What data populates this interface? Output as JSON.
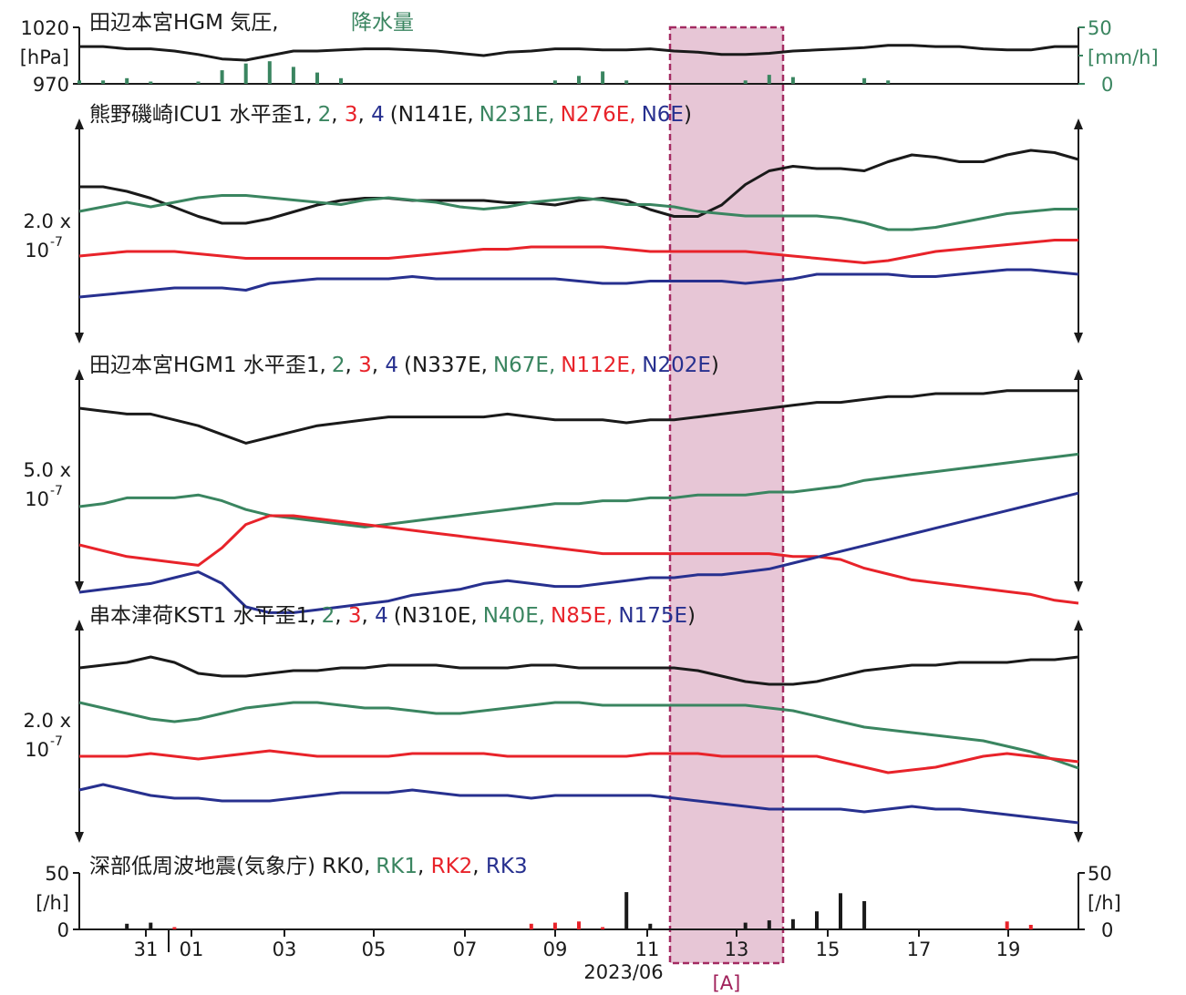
{
  "colors": {
    "black": "#1a1a1a",
    "green": "#3a8560",
    "red": "#e8232a",
    "blue": "#27308f",
    "highlight": "#e6c4d4",
    "highlight_border": "#a0205a"
  },
  "panel_pressure": {
    "title": "田辺本宮HGM 気圧,",
    "title_rain": "降水量",
    "y_top": "1020",
    "y_unit": "[hPa]",
    "y_bottom": "970",
    "r_top": "50",
    "r_unit": "[mm/h]",
    "r_bottom": "0"
  },
  "panel_icu": {
    "prefix": "熊野磯崎ICU1 水平歪1,",
    "s2": "2",
    "s3": "3",
    "s4": "4",
    "dir_open": "(N141E,",
    "d2": "N231E,",
    "d3": "N276E,",
    "d4": "N6E",
    "dir_close": ")",
    "scale1": "2.0 x",
    "scale2": "10",
    "scale_exp": "-7"
  },
  "panel_hgm": {
    "prefix": "田辺本宮HGM1 水平歪1,",
    "s2": "2",
    "s3": "3",
    "s4": "4",
    "dir_open": "(N337E,",
    "d2": "N67E,",
    "d3": "N112E,",
    "d4": "N202E",
    "dir_close": ")",
    "scale1": "5.0 x",
    "scale2": "10",
    "scale_exp": "-7"
  },
  "panel_kst": {
    "prefix": "串本津荷KST1 水平歪1,",
    "s2": "2",
    "s3": "3",
    "s4": "4",
    "dir_open": "(N310E,",
    "d2": "N40E,",
    "d3": "N85E,",
    "d4": "N175E",
    "dir_close": ")",
    "scale1": "2.0 x",
    "scale2": "10",
    "scale_exp": "-7"
  },
  "panel_lfe": {
    "title": "深部低周波地震(気象庁) RK0,",
    "rk1": "RK1",
    "rk2": "RK2",
    "rk3": "RK3",
    "y_top": "50",
    "y_unit": "[/h]",
    "y_bottom": "0"
  },
  "x_axis": {
    "ticks": [
      "31",
      "01",
      "03",
      "05",
      "07",
      "09",
      "11",
      "13",
      "15",
      "17",
      "19"
    ],
    "label": "2023/06",
    "highlight_label": "[A]"
  },
  "chart_data": [
    {
      "type": "line+bar",
      "title": "田辺本宮HGM 気圧, 降水量",
      "series": [
        {
          "name": "気圧",
          "unit": "hPa",
          "values": [
            1003,
            1003,
            1001,
            1001,
            999,
            996,
            992,
            991,
            995,
            999,
            999,
            1000,
            1001,
            1001,
            1000,
            999,
            997,
            995,
            998,
            999,
            1001,
            1001,
            1000,
            1000,
            1001,
            999,
            998,
            996,
            996,
            997,
            999,
            1000,
            1001,
            1002,
            1004,
            1004,
            1003,
            1003,
            1001,
            1000,
            1000,
            1003,
            1003
          ]
        },
        {
          "name": "降水量",
          "unit": "mm/h",
          "values": [
            3,
            3,
            5,
            2,
            0,
            2,
            12,
            18,
            20,
            15,
            10,
            5,
            0,
            0,
            0,
            0,
            0,
            0,
            0,
            0,
            3,
            7,
            11,
            3,
            0,
            0,
            0,
            0,
            3,
            8,
            6,
            0,
            0,
            5,
            3,
            0,
            0,
            0,
            0,
            0,
            0,
            0,
            0
          ]
        }
      ],
      "ylim": [
        970,
        1020
      ],
      "y2lim": [
        0,
        50
      ]
    },
    {
      "type": "line",
      "title": "熊野磯崎ICU1 水平歪1, 2, 3, 4 (N141E, N231E, N276E, N6E)",
      "scale": "2.0 x 10-7",
      "series": [
        {
          "name": "1",
          "values": [
            -1.0,
            -1.0,
            -1.2,
            -1.5,
            -1.9,
            -2.3,
            -2.6,
            -2.6,
            -2.4,
            -2.1,
            -1.8,
            -1.6,
            -1.5,
            -1.5,
            -1.6,
            -1.6,
            -1.6,
            -1.6,
            -1.7,
            -1.7,
            -1.8,
            -1.6,
            -1.5,
            -1.6,
            -2.0,
            -2.3,
            -2.3,
            -1.8,
            -0.9,
            -0.3,
            -0.1,
            -0.2,
            -0.2,
            -0.3,
            0.1,
            0.4,
            0.3,
            0.1,
            0.1,
            0.4,
            0.6,
            0.5,
            0.2
          ]
        },
        {
          "name": "2",
          "values": [
            0.0,
            0.2,
            0.4,
            0.2,
            0.4,
            0.6,
            0.7,
            0.7,
            0.6,
            0.5,
            0.4,
            0.3,
            0.5,
            0.6,
            0.5,
            0.4,
            0.2,
            0.1,
            0.2,
            0.4,
            0.5,
            0.6,
            0.5,
            0.3,
            0.3,
            0.2,
            0.0,
            -0.1,
            -0.2,
            -0.2,
            -0.2,
            -0.2,
            -0.3,
            -0.5,
            -0.8,
            -0.8,
            -0.7,
            -0.5,
            -0.3,
            -0.1,
            0.0,
            0.1,
            0.1
          ]
        },
        {
          "name": "3",
          "values": [
            -0.2,
            -0.1,
            0.0,
            0.0,
            0.0,
            -0.1,
            -0.2,
            -0.3,
            -0.3,
            -0.3,
            -0.3,
            -0.3,
            -0.3,
            -0.3,
            -0.2,
            -0.1,
            0.0,
            0.1,
            0.1,
            0.2,
            0.2,
            0.2,
            0.2,
            0.1,
            0.0,
            0.0,
            0.0,
            0.0,
            0.0,
            -0.1,
            -0.2,
            -0.3,
            -0.4,
            -0.5,
            -0.4,
            -0.2,
            0.0,
            0.1,
            0.2,
            0.3,
            0.4,
            0.5,
            0.5
          ]
        },
        {
          "name": "4",
          "values": [
            0.0,
            0.1,
            0.2,
            0.3,
            0.4,
            0.4,
            0.4,
            0.3,
            0.6,
            0.7,
            0.8,
            0.8,
            0.8,
            0.8,
            0.9,
            0.8,
            0.8,
            0.8,
            0.8,
            0.8,
            0.8,
            0.7,
            0.6,
            0.6,
            0.7,
            0.7,
            0.7,
            0.7,
            0.6,
            0.7,
            0.8,
            1.0,
            1.0,
            1.0,
            1.0,
            0.9,
            0.9,
            1.0,
            1.1,
            1.2,
            1.2,
            1.1,
            1.0
          ]
        }
      ]
    },
    {
      "type": "line",
      "title": "田辺本宮HGM1 水平歪1, 2, 3, 4 (N337E, N67E, N112E, N202E)",
      "scale": "5.0 x 10-7",
      "series": [
        {
          "name": "1",
          "values": [
            0.0,
            -0.1,
            -0.2,
            -0.2,
            -0.4,
            -0.6,
            -0.9,
            -1.2,
            -1.0,
            -0.8,
            -0.6,
            -0.5,
            -0.4,
            -0.3,
            -0.3,
            -0.3,
            -0.3,
            -0.3,
            -0.2,
            -0.3,
            -0.4,
            -0.4,
            -0.4,
            -0.5,
            -0.4,
            -0.4,
            -0.3,
            -0.2,
            -0.1,
            0.0,
            0.1,
            0.2,
            0.2,
            0.3,
            0.4,
            0.4,
            0.5,
            0.5,
            0.5,
            0.6,
            0.6,
            0.6,
            0.6
          ]
        },
        {
          "name": "2",
          "values": [
            -1.5,
            -1.4,
            -1.2,
            -1.2,
            -1.2,
            -1.1,
            -1.3,
            -1.6,
            -1.8,
            -1.9,
            -2.0,
            -2.1,
            -2.2,
            -2.1,
            -2.0,
            -1.9,
            -1.8,
            -1.7,
            -1.6,
            -1.5,
            -1.4,
            -1.4,
            -1.3,
            -1.3,
            -1.2,
            -1.2,
            -1.1,
            -1.1,
            -1.1,
            -1.0,
            -1.0,
            -0.9,
            -0.8,
            -0.6,
            -0.5,
            -0.4,
            -0.3,
            -0.2,
            -0.1,
            0.0,
            0.1,
            0.2,
            0.3
          ]
        },
        {
          "name": "3",
          "values": [
            -1.5,
            -1.7,
            -1.9,
            -2.0,
            -2.1,
            -2.2,
            -1.6,
            -0.8,
            -0.5,
            -0.5,
            -0.6,
            -0.7,
            -0.8,
            -0.9,
            -1.0,
            -1.1,
            -1.2,
            -1.3,
            -1.4,
            -1.5,
            -1.6,
            -1.7,
            -1.8,
            -1.8,
            -1.8,
            -1.8,
            -1.8,
            -1.8,
            -1.8,
            -1.8,
            -1.9,
            -1.9,
            -2.0,
            -2.3,
            -2.5,
            -2.7,
            -2.8,
            -2.9,
            -3.0,
            -3.1,
            -3.2,
            -3.4,
            -3.5
          ]
        },
        {
          "name": "4",
          "values": [
            -1.5,
            -1.4,
            -1.3,
            -1.2,
            -1.0,
            -0.8,
            -1.2,
            -2.0,
            -2.2,
            -2.2,
            -2.1,
            -2.0,
            -1.9,
            -1.8,
            -1.6,
            -1.5,
            -1.4,
            -1.2,
            -1.1,
            -1.2,
            -1.3,
            -1.3,
            -1.2,
            -1.1,
            -1.0,
            -1.0,
            -0.9,
            -0.9,
            -0.8,
            -0.7,
            -0.5,
            -0.3,
            -0.1,
            0.1,
            0.3,
            0.5,
            0.7,
            0.9,
            1.1,
            1.3,
            1.5,
            1.7,
            1.9
          ]
        }
      ]
    },
    {
      "type": "line",
      "title": "串本津荷KST1 水平歪1, 2, 3, 4 (N310E, N40E, N85E, N175E)",
      "scale": "2.0 x 10-7",
      "series": [
        {
          "name": "1",
          "values": [
            0.0,
            0.1,
            0.2,
            0.4,
            0.2,
            -0.2,
            -0.3,
            -0.3,
            -0.2,
            -0.1,
            -0.1,
            0.0,
            0.0,
            0.1,
            0.1,
            0.1,
            0.0,
            0.0,
            0.0,
            0.1,
            0.1,
            0.0,
            0.0,
            0.0,
            0.0,
            0.0,
            -0.1,
            -0.3,
            -0.5,
            -0.6,
            -0.6,
            -0.5,
            -0.3,
            -0.1,
            0.0,
            0.1,
            0.1,
            0.2,
            0.2,
            0.2,
            0.3,
            0.3,
            0.4
          ]
        },
        {
          "name": "2",
          "values": [
            0.0,
            -0.2,
            -0.4,
            -0.6,
            -0.7,
            -0.6,
            -0.4,
            -0.2,
            -0.1,
            0.0,
            0.0,
            -0.1,
            -0.2,
            -0.2,
            -0.3,
            -0.4,
            -0.4,
            -0.3,
            -0.2,
            -0.1,
            0.0,
            0.0,
            -0.1,
            -0.1,
            -0.1,
            -0.1,
            -0.1,
            -0.1,
            -0.1,
            -0.2,
            -0.3,
            -0.5,
            -0.7,
            -0.9,
            -1.0,
            -1.1,
            -1.2,
            -1.3,
            -1.4,
            -1.6,
            -1.8,
            -2.1,
            -2.4
          ]
        },
        {
          "name": "3",
          "values": [
            0.0,
            0.0,
            0.0,
            0.1,
            0.0,
            -0.1,
            0.0,
            0.1,
            0.2,
            0.1,
            0.0,
            0.0,
            0.0,
            0.0,
            0.1,
            0.1,
            0.1,
            0.1,
            0.0,
            0.0,
            0.0,
            0.0,
            0.0,
            0.0,
            0.1,
            0.1,
            0.1,
            0.0,
            0.0,
            0.0,
            0.0,
            0.0,
            -0.2,
            -0.4,
            -0.6,
            -0.5,
            -0.4,
            -0.2,
            0.0,
            0.1,
            0.0,
            -0.1,
            -0.2
          ]
        },
        {
          "name": "4",
          "values": [
            0.0,
            0.2,
            0.0,
            -0.2,
            -0.3,
            -0.3,
            -0.4,
            -0.4,
            -0.4,
            -0.3,
            -0.2,
            -0.1,
            -0.1,
            -0.1,
            0.0,
            -0.1,
            -0.2,
            -0.2,
            -0.2,
            -0.3,
            -0.2,
            -0.2,
            -0.2,
            -0.2,
            -0.2,
            -0.3,
            -0.4,
            -0.5,
            -0.6,
            -0.7,
            -0.7,
            -0.7,
            -0.7,
            -0.8,
            -0.7,
            -0.6,
            -0.7,
            -0.7,
            -0.8,
            -0.9,
            -1.0,
            -1.1,
            -1.2
          ]
        }
      ]
    },
    {
      "type": "bar",
      "title": "深部低周波地震(気象庁) RK0, RK1, RK2, RK3",
      "unit": "/h",
      "series": [
        {
          "name": "RK0",
          "values": [
            0,
            0,
            5,
            6,
            0,
            0,
            0,
            0,
            0,
            0,
            0,
            0,
            0,
            0,
            0,
            0,
            0,
            0,
            0,
            0,
            0,
            0,
            0,
            33,
            5,
            0,
            0,
            0,
            6,
            8,
            9,
            16,
            32,
            25,
            0,
            0,
            0,
            0,
            0,
            0,
            0,
            0,
            0
          ]
        },
        {
          "name": "RK2",
          "values": [
            0,
            0,
            0,
            0,
            2,
            0,
            0,
            0,
            0,
            0,
            0,
            0,
            0,
            0,
            0,
            0,
            0,
            0,
            0,
            5,
            6,
            7,
            2,
            0,
            0,
            0,
            0,
            0,
            0,
            0,
            0,
            0,
            0,
            0,
            0,
            0,
            0,
            0,
            0,
            7,
            4,
            0,
            0
          ]
        }
      ],
      "ylim": [
        0,
        50
      ]
    }
  ]
}
